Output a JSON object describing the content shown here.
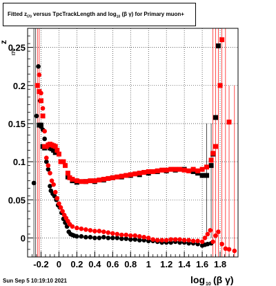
{
  "title": {
    "prefix": "Fitted  z",
    "sub1": "I70",
    "middle": "  versus TpcTrackLength and log",
    "sub2": "10",
    "suffix": " (β  γ) for Primary muon+"
  },
  "datestamp": "Sun Sep  5 10:19:10 2021",
  "colors": {
    "black_series": "#000000",
    "red_series": "#ff0000",
    "grid": "#000000"
  },
  "chart_data": {
    "type": "scatter",
    "title": "Fitted  zI70  versus TpcTrackLength and log10 (β  γ) for Primary muon+",
    "xlabel": "log10 (β γ)",
    "ylabel": "zI70",
    "xlim": [
      -0.35,
      2.0
    ],
    "ylim": [
      -0.025,
      0.275
    ],
    "xticks": [
      "-0.2",
      "0",
      "0.2",
      "0.4",
      "0.6",
      "0.8",
      "1",
      "1.2",
      "1.4",
      "1.6",
      "1.8"
    ],
    "xtick_values": [
      -0.2,
      0,
      0.2,
      0.4,
      0.6,
      0.8,
      1.0,
      1.2,
      1.4,
      1.6,
      1.8
    ],
    "yticks": [
      "0",
      "0.05",
      "0.1",
      "0.15",
      "0.2",
      "0.25"
    ],
    "ytick_values": [
      0,
      0.05,
      0.1,
      0.15,
      0.2,
      0.25
    ],
    "grid": true,
    "series": [
      {
        "marker": "circle",
        "color": "#000000",
        "points": [
          [
            -0.28,
            0.072
          ],
          [
            -0.25,
            0.16
          ],
          [
            -0.23,
            0.225
          ],
          [
            -0.21,
            0.18
          ],
          [
            -0.2,
            0.146
          ],
          [
            -0.18,
            0.142
          ],
          [
            -0.16,
            0.13
          ],
          [
            -0.14,
            0.1
          ],
          [
            -0.12,
            0.09
          ],
          [
            -0.1,
            0.068
          ],
          [
            -0.09,
            0.062
          ],
          [
            -0.07,
            0.058
          ],
          [
            -0.05,
            0.055
          ],
          [
            -0.03,
            0.05
          ],
          [
            -0.01,
            0.043
          ],
          [
            0.01,
            0.04
          ],
          [
            0.03,
            0.033
          ],
          [
            0.05,
            0.025
          ],
          [
            0.07,
            0.02
          ],
          [
            0.09,
            0.015
          ],
          [
            0.11,
            0.008
          ],
          [
            0.13,
            0.005
          ],
          [
            0.15,
            0.004
          ],
          [
            0.17,
            0.003
          ],
          [
            0.2,
            0.002
          ],
          [
            0.25,
            0.002
          ],
          [
            0.3,
            0.001
          ],
          [
            0.35,
            0.001
          ],
          [
            0.4,
            0.0
          ],
          [
            0.45,
            0.0
          ],
          [
            0.5,
            0.001
          ],
          [
            0.55,
            0.0
          ],
          [
            0.6,
            0.0
          ],
          [
            0.65,
            0.0
          ],
          [
            0.7,
            -0.001
          ],
          [
            0.75,
            -0.001
          ],
          [
            0.8,
            -0.002
          ],
          [
            0.85,
            -0.002
          ],
          [
            0.9,
            -0.003
          ],
          [
            0.95,
            -0.003
          ],
          [
            1.0,
            -0.004
          ],
          [
            1.05,
            -0.004
          ],
          [
            1.1,
            -0.005
          ],
          [
            1.15,
            -0.006
          ],
          [
            1.2,
            -0.006
          ],
          [
            1.25,
            -0.006
          ],
          [
            1.3,
            -0.005
          ],
          [
            1.35,
            -0.006
          ],
          [
            1.4,
            -0.006
          ],
          [
            1.45,
            -0.007
          ],
          [
            1.5,
            -0.007
          ],
          [
            1.55,
            -0.008
          ],
          [
            1.6,
            -0.01
          ],
          [
            1.63,
            -0.009
          ],
          [
            1.66,
            -0.008
          ],
          [
            1.7,
            -0.007
          ]
        ]
      },
      {
        "marker": "square",
        "color": "#000000",
        "points": [
          [
            -0.22,
            0.148
          ],
          [
            -0.2,
            0.148
          ],
          [
            -0.18,
            0.12
          ],
          [
            -0.16,
            0.118
          ],
          [
            -0.12,
            0.12
          ],
          [
            -0.1,
            0.118
          ],
          [
            -0.08,
            0.117
          ],
          [
            -0.06,
            0.115
          ],
          [
            -0.04,
            0.112
          ],
          [
            0.1,
            0.08
          ],
          [
            0.15,
            0.075
          ],
          [
            0.2,
            0.073
          ],
          [
            0.3,
            0.074
          ],
          [
            0.4,
            0.074
          ],
          [
            0.5,
            0.076
          ],
          [
            0.6,
            0.079
          ],
          [
            0.7,
            0.08
          ],
          [
            0.8,
            0.082
          ],
          [
            0.9,
            0.083
          ],
          [
            1.0,
            0.085
          ],
          [
            1.1,
            0.087
          ],
          [
            1.2,
            0.088
          ],
          [
            1.3,
            0.089
          ],
          [
            1.4,
            0.09
          ],
          [
            1.5,
            0.087
          ],
          [
            1.55,
            0.085
          ],
          [
            1.6,
            0.082
          ],
          [
            1.63,
            0.082
          ],
          [
            1.65,
            0.082
          ],
          [
            1.7,
            0.095
          ],
          [
            1.72,
            0.11
          ],
          [
            1.75,
            0.158
          ],
          [
            1.78,
            0.252
          ]
        ]
      },
      {
        "marker": "circle",
        "color": "#ff0000",
        "points": [
          [
            -0.22,
            0.214
          ],
          [
            -0.2,
            0.19
          ],
          [
            -0.18,
            0.17
          ],
          [
            -0.16,
            0.14
          ],
          [
            -0.14,
            0.105
          ],
          [
            -0.12,
            0.095
          ],
          [
            -0.1,
            0.085
          ],
          [
            -0.08,
            0.075
          ],
          [
            -0.06,
            0.07
          ],
          [
            -0.04,
            0.06
          ],
          [
            -0.02,
            0.052
          ],
          [
            0.0,
            0.045
          ],
          [
            0.02,
            0.04
          ],
          [
            0.04,
            0.035
          ],
          [
            0.06,
            0.03
          ],
          [
            0.08,
            0.026
          ],
          [
            0.1,
            0.022
          ],
          [
            0.12,
            0.018
          ],
          [
            0.15,
            0.015
          ],
          [
            0.2,
            0.013
          ],
          [
            0.25,
            0.012
          ],
          [
            0.3,
            0.011
          ],
          [
            0.35,
            0.01
          ],
          [
            0.4,
            0.009
          ],
          [
            0.45,
            0.009
          ],
          [
            0.5,
            0.008
          ],
          [
            0.55,
            0.007
          ],
          [
            0.6,
            0.006
          ],
          [
            0.65,
            0.005
          ],
          [
            0.7,
            0.004
          ],
          [
            0.75,
            0.004
          ],
          [
            0.8,
            0.003
          ],
          [
            0.85,
            0.003
          ],
          [
            0.9,
            0.002
          ],
          [
            0.95,
            0.001
          ],
          [
            1.0,
            0.0
          ],
          [
            1.05,
            -0.002
          ],
          [
            1.1,
            -0.003
          ],
          [
            1.15,
            -0.003
          ],
          [
            1.2,
            -0.003
          ],
          [
            1.25,
            -0.002
          ],
          [
            1.3,
            -0.002
          ],
          [
            1.35,
            -0.002
          ],
          [
            1.4,
            -0.003
          ],
          [
            1.45,
            -0.003
          ],
          [
            1.5,
            -0.004
          ],
          [
            1.55,
            -0.004
          ],
          [
            1.6,
            -0.005
          ],
          [
            1.63,
            0.0
          ],
          [
            1.66,
            0.005
          ],
          [
            1.69,
            0.01
          ],
          [
            1.72,
            -0.005
          ],
          [
            1.75,
            0.003
          ],
          [
            1.78,
            0.008
          ],
          [
            1.82,
            -0.008
          ],
          [
            1.86,
            -0.014
          ],
          [
            1.9,
            -0.015
          ],
          [
            1.96,
            -0.017
          ]
        ]
      },
      {
        "marker": "square",
        "color": "#ff0000",
        "points": [
          [
            -0.24,
            0.2
          ],
          [
            -0.22,
            0.192
          ],
          [
            -0.2,
            0.18
          ],
          [
            -0.18,
            0.16
          ],
          [
            -0.16,
            0.12
          ],
          [
            -0.14,
            0.12
          ],
          [
            -0.12,
            0.122
          ],
          [
            -0.1,
            0.123
          ],
          [
            -0.08,
            0.122
          ],
          [
            -0.06,
            0.121
          ],
          [
            -0.04,
            0.12
          ],
          [
            -0.02,
            0.115
          ],
          [
            0.0,
            0.11
          ],
          [
            0.02,
            0.1
          ],
          [
            0.05,
            0.1
          ],
          [
            0.07,
            0.095
          ],
          [
            0.1,
            0.085
          ],
          [
            0.12,
            0.079
          ],
          [
            0.15,
            0.077
          ],
          [
            0.2,
            0.075
          ],
          [
            0.25,
            0.074
          ],
          [
            0.3,
            0.074
          ],
          [
            0.35,
            0.075
          ],
          [
            0.4,
            0.075
          ],
          [
            0.45,
            0.076
          ],
          [
            0.5,
            0.077
          ],
          [
            0.55,
            0.078
          ],
          [
            0.6,
            0.079
          ],
          [
            0.65,
            0.08
          ],
          [
            0.7,
            0.081
          ],
          [
            0.75,
            0.082
          ],
          [
            0.8,
            0.083
          ],
          [
            0.85,
            0.084
          ],
          [
            0.9,
            0.085
          ],
          [
            0.95,
            0.086
          ],
          [
            1.0,
            0.087
          ],
          [
            1.05,
            0.087
          ],
          [
            1.1,
            0.088
          ],
          [
            1.15,
            0.089
          ],
          [
            1.2,
            0.089
          ],
          [
            1.25,
            0.09
          ],
          [
            1.3,
            0.09
          ],
          [
            1.35,
            0.09
          ],
          [
            1.4,
            0.089
          ],
          [
            1.45,
            0.088
          ],
          [
            1.5,
            0.09
          ],
          [
            1.55,
            0.088
          ],
          [
            1.6,
            0.09
          ],
          [
            1.65,
            0.093
          ],
          [
            1.7,
            0.102
          ],
          [
            1.72,
            0.111
          ],
          [
            1.75,
            0.12
          ],
          [
            1.8,
            0.2
          ],
          [
            1.82,
            0.26
          ],
          [
            1.9,
            0.152
          ]
        ]
      }
    ]
  }
}
